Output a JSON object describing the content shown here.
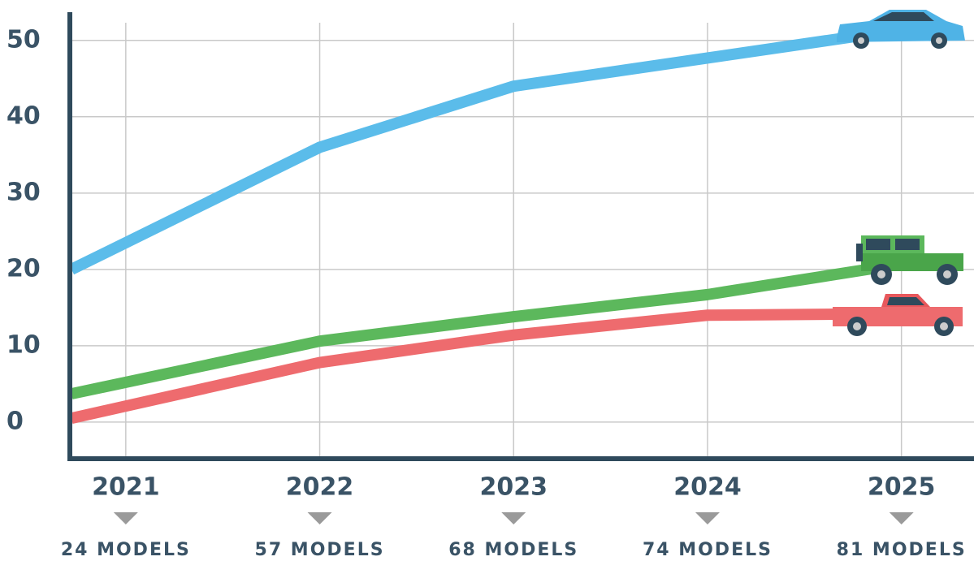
{
  "chart_data": {
    "type": "line",
    "x": [
      2020.72,
      2022,
      2023,
      2024,
      2025
    ],
    "series": [
      {
        "color": "#5bbcea",
        "values": [
          20,
          36,
          44,
          47.7,
          51.4
        ]
      },
      {
        "color": "#5cb85c",
        "values": [
          3.7,
          10.6,
          13.8,
          16.7,
          20.7
        ]
      },
      {
        "color": "#ee6b6e",
        "values": [
          0.5,
          7.8,
          11.4,
          14,
          14.2
        ]
      }
    ],
    "xlim": [
      2020.72,
      2025.37
    ],
    "xticks": [
      2021,
      2022,
      2023,
      2024,
      2025
    ],
    "ylim": [
      -4.8,
      53.7
    ],
    "yticks": [
      0,
      10,
      20,
      30,
      40,
      50
    ],
    "grid": true,
    "x_annotations": [
      "24 MODELS",
      "57 MODELS",
      "68 MODELS",
      "74 MODELS",
      "81 MODELS"
    ]
  }
}
